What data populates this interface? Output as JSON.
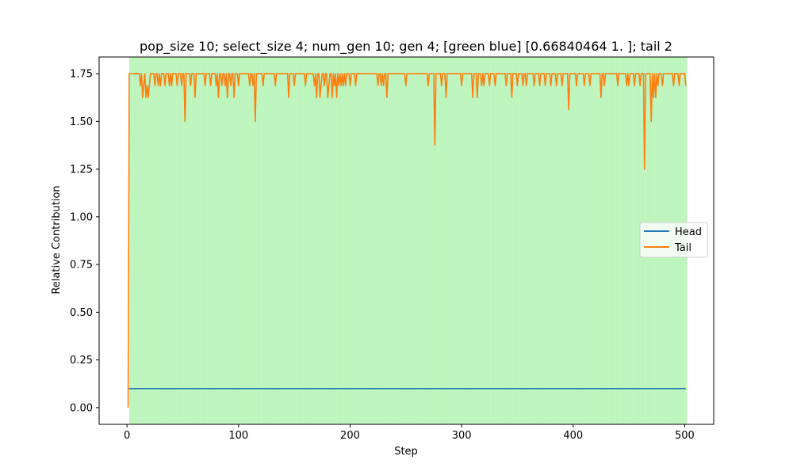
{
  "chart_data": {
    "type": "line",
    "title": "pop_size 10; select_size 4; num_gen 10; gen 4; [green blue] [0.66840464 1.         ]; tail 2",
    "xlabel": "Step",
    "ylabel": "Relative Contribution",
    "xlim": [
      -25,
      526
    ],
    "ylim": [
      -0.0875,
      1.8375
    ],
    "xticks": [
      0,
      100,
      200,
      300,
      400,
      500
    ],
    "yticks": [
      0.0,
      0.25,
      0.5,
      0.75,
      1.0,
      1.25,
      1.5,
      1.75
    ],
    "xtick_labels": [
      "0",
      "100",
      "200",
      "300",
      "400",
      "500"
    ],
    "ytick_labels": [
      "0.00",
      "0.25",
      "0.50",
      "0.75",
      "1.00",
      "1.25",
      "1.50",
      "1.75"
    ],
    "grid": false,
    "legend_placement": "center-right",
    "background_band": {
      "x_start": 2,
      "x_end": 502,
      "color": "#90ee90",
      "alpha": 0.6
    },
    "series": [
      {
        "name": "Head",
        "color": "#1f77b4",
        "x": [
          1,
          501
        ],
        "values": [
          0.1,
          0.1
        ]
      },
      {
        "name": "Tail",
        "color": "#ff7f0e",
        "baseline": 1.75,
        "x_start": 1,
        "x_end": 501,
        "start_value": 0.0,
        "end_value": 1.6875,
        "dips": [
          [
            12,
            1.6875
          ],
          [
            14,
            1.625
          ],
          [
            15,
            1.6875
          ],
          [
            17,
            1.625
          ],
          [
            18,
            1.6875
          ],
          [
            19,
            1.625
          ],
          [
            20,
            1.6875
          ],
          [
            25,
            1.6875
          ],
          [
            28,
            1.6875
          ],
          [
            30,
            1.6875
          ],
          [
            34,
            1.6875
          ],
          [
            38,
            1.6875
          ],
          [
            40,
            1.6875
          ],
          [
            45,
            1.6875
          ],
          [
            49,
            1.6875
          ],
          [
            52,
            1.5
          ],
          [
            57,
            1.6875
          ],
          [
            61,
            1.625
          ],
          [
            70,
            1.6875
          ],
          [
            75,
            1.6875
          ],
          [
            80,
            1.6875
          ],
          [
            82,
            1.625
          ],
          [
            85,
            1.6875
          ],
          [
            88,
            1.6875
          ],
          [
            90,
            1.625
          ],
          [
            93,
            1.6875
          ],
          [
            96,
            1.625
          ],
          [
            100,
            1.6875
          ],
          [
            110,
            1.6875
          ],
          [
            113,
            1.6875
          ],
          [
            115,
            1.5
          ],
          [
            122,
            1.6875
          ],
          [
            133,
            1.6875
          ],
          [
            145,
            1.625
          ],
          [
            150,
            1.6875
          ],
          [
            160,
            1.6875
          ],
          [
            168,
            1.6875
          ],
          [
            170,
            1.625
          ],
          [
            173,
            1.625
          ],
          [
            174,
            1.6875
          ],
          [
            177,
            1.6875
          ],
          [
            180,
            1.625
          ],
          [
            181,
            1.6875
          ],
          [
            184,
            1.625
          ],
          [
            186,
            1.6875
          ],
          [
            188,
            1.625
          ],
          [
            190,
            1.6875
          ],
          [
            192,
            1.6875
          ],
          [
            194,
            1.6875
          ],
          [
            196,
            1.6875
          ],
          [
            200,
            1.6875
          ],
          [
            205,
            1.6875
          ],
          [
            225,
            1.6875
          ],
          [
            228,
            1.6875
          ],
          [
            230,
            1.6875
          ],
          [
            233,
            1.625
          ],
          [
            250,
            1.6875
          ],
          [
            270,
            1.6875
          ],
          [
            276,
            1.375
          ],
          [
            282,
            1.6875
          ],
          [
            286,
            1.625
          ],
          [
            300,
            1.6875
          ],
          [
            310,
            1.625
          ],
          [
            314,
            1.625
          ],
          [
            318,
            1.6875
          ],
          [
            320,
            1.6875
          ],
          [
            325,
            1.6875
          ],
          [
            330,
            1.6875
          ],
          [
            340,
            1.6875
          ],
          [
            345,
            1.625
          ],
          [
            350,
            1.6875
          ],
          [
            355,
            1.6875
          ],
          [
            358,
            1.6875
          ],
          [
            365,
            1.6875
          ],
          [
            370,
            1.6875
          ],
          [
            375,
            1.6875
          ],
          [
            380,
            1.6875
          ],
          [
            385,
            1.6875
          ],
          [
            390,
            1.6875
          ],
          [
            396,
            1.5625
          ],
          [
            403,
            1.6875
          ],
          [
            410,
            1.6875
          ],
          [
            415,
            1.6875
          ],
          [
            425,
            1.625
          ],
          [
            428,
            1.6875
          ],
          [
            440,
            1.6875
          ],
          [
            448,
            1.6875
          ],
          [
            450,
            1.6875
          ],
          [
            455,
            1.6875
          ],
          [
            460,
            1.6875
          ],
          [
            464,
            1.25
          ],
          [
            470,
            1.5
          ],
          [
            472,
            1.625
          ],
          [
            474,
            1.625
          ],
          [
            476,
            1.6875
          ],
          [
            480,
            1.6875
          ],
          [
            490,
            1.6875
          ],
          [
            495,
            1.6875
          ]
        ]
      }
    ]
  }
}
